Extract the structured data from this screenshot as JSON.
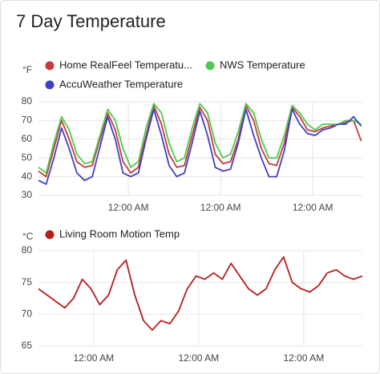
{
  "card": {
    "title": "7 Day Temperature"
  },
  "chart_data": [
    {
      "type": "line",
      "ylabel": "°F",
      "x": [
        0,
        2,
        4,
        6,
        8,
        10,
        12,
        14,
        16,
        18,
        20,
        22,
        24,
        26,
        28,
        30,
        32,
        34,
        36,
        38,
        40,
        42,
        44,
        46,
        48,
        50,
        52,
        54,
        56,
        58,
        60,
        62,
        64,
        66,
        68,
        70,
        72,
        74,
        76,
        78,
        80,
        82,
        84
      ],
      "series": [
        {
          "name": "Home RealFeel Temperatu...",
          "color": "#c53a3a",
          "values": [
            43,
            40,
            55,
            70,
            60,
            48,
            45,
            46,
            60,
            74,
            65,
            48,
            42,
            45,
            62,
            78,
            68,
            52,
            45,
            46,
            62,
            77,
            70,
            52,
            47,
            48,
            60,
            78,
            70,
            55,
            47,
            46,
            58,
            77,
            72,
            65,
            64,
            66,
            67,
            68,
            69,
            70,
            59
          ]
        },
        {
          "name": "NWS Temperature",
          "color": "#4fc94f",
          "values": [
            45,
            42,
            58,
            72,
            65,
            52,
            47,
            48,
            62,
            76,
            70,
            55,
            45,
            48,
            66,
            79,
            74,
            58,
            48,
            50,
            66,
            79,
            74,
            58,
            50,
            52,
            64,
            79,
            74,
            60,
            50,
            50,
            62,
            78,
            74,
            68,
            65,
            68,
            68,
            68,
            70,
            70,
            68
          ]
        },
        {
          "name": "AccuWeather Temperature",
          "color": "#3f3fc4",
          "values": [
            38,
            36,
            50,
            66,
            55,
            42,
            38,
            40,
            56,
            72,
            60,
            42,
            40,
            42,
            60,
            76,
            62,
            46,
            40,
            42,
            58,
            75,
            62,
            45,
            43,
            44,
            58,
            76,
            62,
            50,
            40,
            40,
            54,
            76,
            68,
            63,
            62,
            65,
            66,
            68,
            68,
            72,
            67
          ]
        }
      ],
      "xlim": [
        0,
        84.3
      ],
      "xticks": [
        {
          "value": 23.4,
          "label": "12:00 AM"
        },
        {
          "value": 47.4,
          "label": "12:00 AM"
        },
        {
          "value": 71.4,
          "label": "12:00 AM"
        }
      ],
      "ylim": [
        30,
        80
      ],
      "yticks": [
        30,
        40,
        50,
        60,
        70,
        80
      ],
      "grid": true
    },
    {
      "type": "line",
      "ylabel": "°C",
      "x": [
        0,
        2,
        4,
        6,
        8,
        10,
        12,
        14,
        16,
        18,
        20,
        22,
        24,
        26,
        28,
        30,
        32,
        34,
        36,
        38,
        40,
        42,
        44,
        46,
        48,
        50,
        52,
        54,
        56,
        58,
        60,
        62,
        64,
        66,
        68,
        70,
        72,
        74
      ],
      "series": [
        {
          "name": "Living Room Motion Temp",
          "color": "#b71c1c",
          "values": [
            74,
            73,
            72,
            71,
            72.5,
            75.5,
            74,
            71.5,
            73,
            77,
            78.5,
            73,
            69,
            67.5,
            69,
            68.5,
            70.5,
            74,
            76,
            75.5,
            76.5,
            75.5,
            78,
            76,
            74,
            73,
            74,
            77,
            79,
            75,
            74,
            73.5,
            74.5,
            76.5,
            77,
            76,
            75.5,
            76
          ]
        }
      ],
      "xlim": [
        0,
        74
      ],
      "xticks": [
        {
          "value": 12.6,
          "label": "12:00 AM"
        },
        {
          "value": 36.6,
          "label": "12:00 AM"
        },
        {
          "value": 60.6,
          "label": "12:00 AM"
        }
      ],
      "ylim": [
        65,
        80
      ],
      "yticks": [
        65,
        70,
        75,
        80
      ],
      "grid": true
    }
  ]
}
